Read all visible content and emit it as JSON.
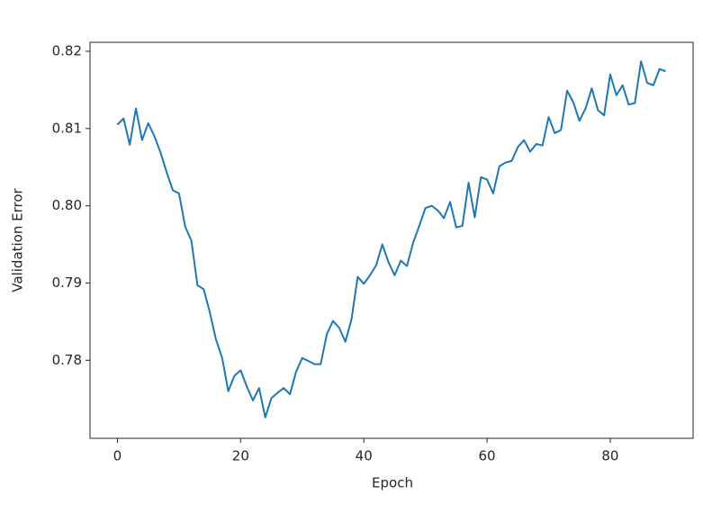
{
  "chart_data": {
    "type": "line",
    "x_label": "Epoch",
    "y_label": "Validation Error",
    "x": [
      0,
      1,
      2,
      3,
      4,
      5,
      6,
      7,
      8,
      9,
      10,
      11,
      12,
      13,
      14,
      15,
      16,
      17,
      18,
      19,
      20,
      21,
      22,
      23,
      24,
      25,
      26,
      27,
      28,
      29,
      30,
      31,
      32,
      33,
      34,
      35,
      36,
      37,
      38,
      39,
      40,
      41,
      42,
      43,
      44,
      45,
      46,
      47,
      48,
      49,
      50,
      51,
      52,
      53,
      54,
      55,
      56,
      57,
      58,
      59,
      60,
      61,
      62,
      63,
      64,
      65,
      66,
      67,
      68,
      69,
      70,
      71,
      72,
      73,
      74,
      75,
      76,
      77,
      78,
      79,
      80,
      81,
      82,
      83,
      84,
      85,
      86,
      87,
      88,
      89
    ],
    "series": [
      {
        "color": "#1f77b4",
        "values": [
          0.8105,
          0.8113,
          0.8079,
          0.8126,
          0.8085,
          0.8107,
          0.809,
          0.8069,
          0.8043,
          0.802,
          0.8016,
          0.7973,
          0.7955,
          0.7897,
          0.7892,
          0.7862,
          0.7827,
          0.7803,
          0.776,
          0.778,
          0.7787,
          0.7766,
          0.7748,
          0.7764,
          0.7726,
          0.7751,
          0.7758,
          0.7764,
          0.7756,
          0.7785,
          0.7803,
          0.7799,
          0.7795,
          0.7795,
          0.7834,
          0.7851,
          0.7842,
          0.7824,
          0.7853,
          0.7908,
          0.7899,
          0.791,
          0.7923,
          0.795,
          0.7927,
          0.791,
          0.7929,
          0.7922,
          0.7952,
          0.7974,
          0.7997,
          0.8,
          0.7994,
          0.7984,
          0.8005,
          0.7972,
          0.7974,
          0.803,
          0.7985,
          0.8037,
          0.8034,
          0.8016,
          0.8051,
          0.8056,
          0.8058,
          0.8076,
          0.8085,
          0.807,
          0.808,
          0.8078,
          0.8115,
          0.8094,
          0.8098,
          0.8149,
          0.8134,
          0.811,
          0.8126,
          0.8152,
          0.8124,
          0.8117,
          0.817,
          0.8143,
          0.8156,
          0.8131,
          0.8133,
          0.8187,
          0.8159,
          0.8156,
          0.8177,
          0.8174
        ]
      }
    ],
    "xlim": [
      -4.45,
      93.45
    ],
    "ylim": [
      0.7699,
      0.82116
    ],
    "xticks": [
      0,
      20,
      40,
      60,
      80
    ],
    "yticks": [
      0.78,
      0.79,
      {
        "value": 0.8,
        "label": "0.80"
      },
      0.81,
      0.82
    ]
  }
}
